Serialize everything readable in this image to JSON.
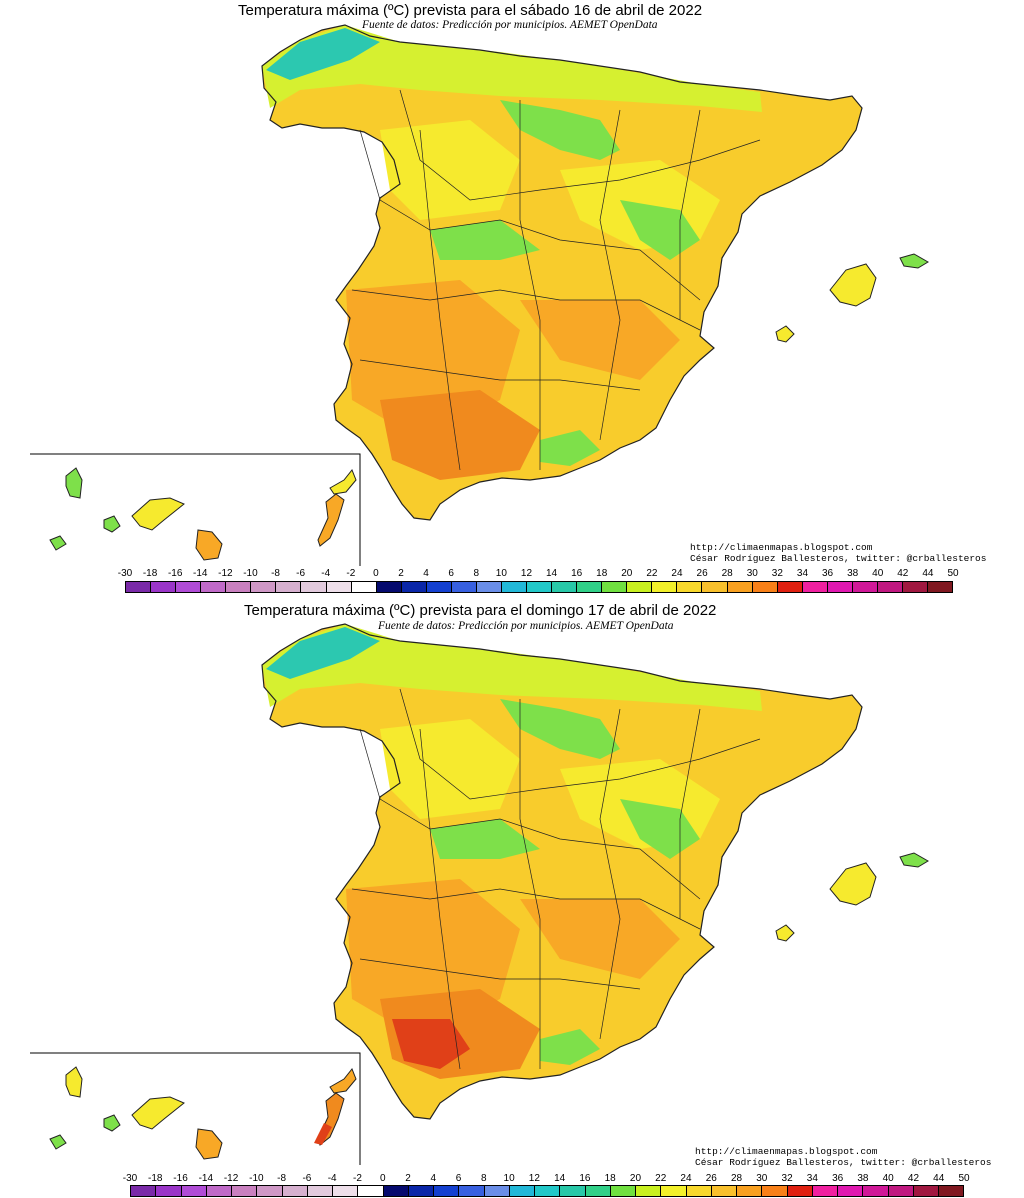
{
  "panels": [
    {
      "title": "Temperatura máxima (ºC) prevista para el sábado 16 de abril de 2022",
      "subtitle": "Fuente de datos: Predicción por municipios. AEMET OpenData",
      "credit_url": "http://climaenmapas.blogspot.com",
      "credit_author": "César Rodríguez Ballesteros, twitter: @crballesteros"
    },
    {
      "title": "Temperatura máxima (ºC) prevista para el domingo 17 de abril de 2022",
      "subtitle": "Fuente de datos: Predicción por municipios. AEMET OpenData",
      "credit_url": "http://climaenmapas.blogspot.com",
      "credit_author": "César Rodríguez Ballesteros, twitter: @crballesteros"
    }
  ],
  "legend": {
    "ticks": [
      "-30",
      "-18",
      "-16",
      "-14",
      "-12",
      "-10",
      "-8",
      "-6",
      "-4",
      "-2",
      "0",
      "2",
      "4",
      "6",
      "8",
      "10",
      "12",
      "14",
      "16",
      "18",
      "20",
      "22",
      "24",
      "26",
      "28",
      "30",
      "32",
      "34",
      "36",
      "38",
      "40",
      "42",
      "44",
      "50"
    ],
    "colors": [
      "#7a2aa8",
      "#9a35c8",
      "#b04cd6",
      "#c06ac8",
      "#c980bf",
      "#cf98c6",
      "#d6b0cf",
      "#e2cadd",
      "#eedfea",
      "#ffffff",
      "#050a6e",
      "#0a26a8",
      "#1440d0",
      "#3860e0",
      "#6a8ee8",
      "#22b8d8",
      "#22c8c8",
      "#28c8a8",
      "#30d088",
      "#70e040",
      "#c8f020",
      "#f2f02a",
      "#f8d82c",
      "#f8c02c",
      "#f8a020",
      "#f88018",
      "#e02010",
      "#f020a0",
      "#e018b0",
      "#d01898",
      "#c01880",
      "#a01840",
      "#801820"
    ]
  },
  "color_key": {
    "teal": "#2cc8b0",
    "green": "#7ee04a",
    "lime": "#d6f030",
    "yellow": "#f6ea2e",
    "lightorange": "#f8cc2c",
    "orange": "#f8a826",
    "darkorange": "#f08a1e",
    "red": "#e04018",
    "border": "#222222"
  }
}
